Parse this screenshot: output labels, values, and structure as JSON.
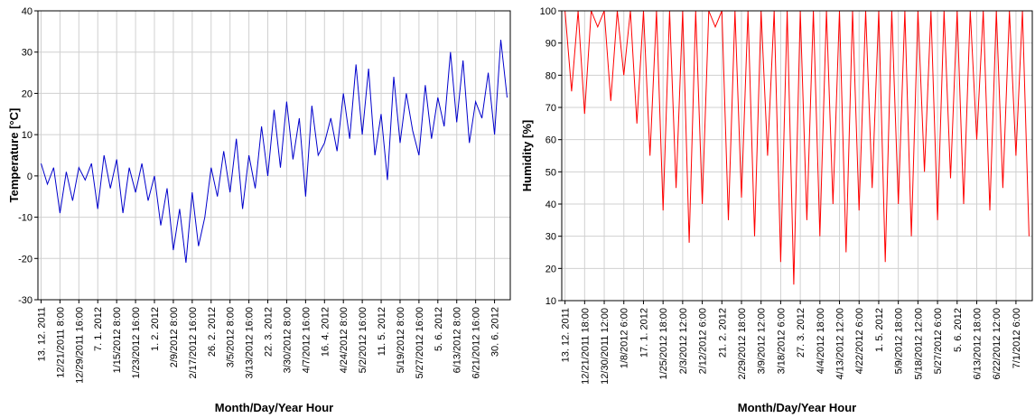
{
  "chart_data": [
    {
      "type": "line",
      "ylabel": "Temperature [°C]",
      "xlabel": "Month/Day/Year Hour",
      "categories": [
        "13. 12. 2011",
        null,
        null,
        "12/21/2011 8:00",
        null,
        null,
        "12/29/2011 16:00",
        null,
        null,
        "7. 1. 2012",
        null,
        null,
        "1/15/2012 8:00",
        null,
        null,
        "1/23/2012 16:00",
        null,
        null,
        "1. 2. 2012",
        null,
        null,
        "2/9/2012 8:00",
        null,
        null,
        "2/17/2012 16:00",
        null,
        null,
        "26. 2. 2012",
        null,
        null,
        "3/5/2012 8:00",
        null,
        null,
        "3/13/2012 16:00",
        null,
        null,
        "22. 3. 2012",
        null,
        null,
        "3/30/2012 8:00",
        null,
        null,
        "4/7/2012 16:00",
        null,
        null,
        "16. 4. 2012",
        null,
        null,
        "4/24/2012 8:00",
        null,
        null,
        "5/2/2012 16:00",
        null,
        null,
        "11. 5. 2012",
        null,
        null,
        "5/19/2012 8:00",
        null,
        null,
        "5/27/2012 16:00",
        null,
        null,
        "5. 6. 2012",
        null,
        null,
        "6/13/2012 8:00",
        null,
        null,
        "6/21/2012 16:00",
        null,
        null,
        "30. 6. 2012",
        null,
        null
      ],
      "series": [
        {
          "name": "Temperature",
          "color": "#0000cc",
          "values": [
            3,
            -2,
            2,
            -9,
            1,
            -6,
            2,
            -1,
            3,
            -8,
            5,
            -3,
            4,
            -9,
            2,
            -4,
            3,
            -6,
            0,
            -12,
            -3,
            -18,
            -8,
            -21,
            -4,
            -17,
            -10,
            2,
            -5,
            6,
            -4,
            9,
            -8,
            5,
            -3,
            12,
            0,
            16,
            2,
            18,
            4,
            14,
            -5,
            17,
            5,
            8,
            14,
            6,
            20,
            9,
            27,
            10,
            26,
            5,
            15,
            -1,
            24,
            8,
            20,
            11,
            5,
            22,
            9,
            19,
            12,
            30,
            13,
            28,
            8,
            18,
            14,
            25,
            10,
            33,
            19
          ]
        }
      ],
      "ylim": [
        -30,
        40
      ],
      "yticks": [
        -30,
        -20,
        -10,
        0,
        10,
        20,
        30,
        40
      ],
      "grid": true
    },
    {
      "type": "line",
      "ylabel": "Humidity [%]",
      "xlabel": "Month/Day/Year Hour",
      "categories": [
        "13. 12. 2011",
        null,
        null,
        "12/21/2011 18:00",
        null,
        null,
        "12/30/2011 12:00",
        null,
        null,
        "1/8/2012 6:00",
        null,
        null,
        "17. 1. 2012",
        null,
        null,
        "1/25/2012 18:00",
        null,
        null,
        "2/3/2012 12:00",
        null,
        null,
        "2/12/2012 6:00",
        null,
        null,
        "21. 2. 2012",
        null,
        null,
        "2/29/2012 18:00",
        null,
        null,
        "3/9/2012 12:00",
        null,
        null,
        "3/18/2012 6:00",
        null,
        null,
        "27. 3. 2012",
        null,
        null,
        "4/4/2012 18:00",
        null,
        null,
        "4/13/2012 12:00",
        null,
        null,
        "4/22/2012 6:00",
        null,
        null,
        "1. 5. 2012",
        null,
        null,
        "5/9/2012 18:00",
        null,
        null,
        "5/18/2012 12:00",
        null,
        null,
        "5/27/2012 6:00",
        null,
        null,
        "5. 6. 2012",
        null,
        null,
        "6/13/2012 18:00",
        null,
        null,
        "6/22/2012 12:00",
        null,
        null,
        "7/1/2012 6:00",
        null,
        null
      ],
      "series": [
        {
          "name": "Humidity",
          "color": "#ff0000",
          "values": [
            100,
            75,
            100,
            68,
            100,
            95,
            100,
            72,
            100,
            80,
            100,
            65,
            100,
            55,
            100,
            38,
            100,
            45,
            100,
            28,
            100,
            40,
            100,
            95,
            100,
            35,
            100,
            42,
            100,
            30,
            100,
            55,
            100,
            22,
            100,
            15,
            100,
            35,
            100,
            30,
            100,
            40,
            100,
            25,
            100,
            38,
            100,
            45,
            100,
            22,
            100,
            40,
            100,
            30,
            100,
            50,
            100,
            35,
            100,
            48,
            100,
            40,
            100,
            60,
            100,
            38,
            100,
            45,
            100,
            55,
            100,
            30
          ]
        }
      ],
      "ylim": [
        10,
        100
      ],
      "yticks": [
        10,
        20,
        30,
        40,
        50,
        60,
        70,
        80,
        90,
        100
      ],
      "grid": true
    }
  ]
}
